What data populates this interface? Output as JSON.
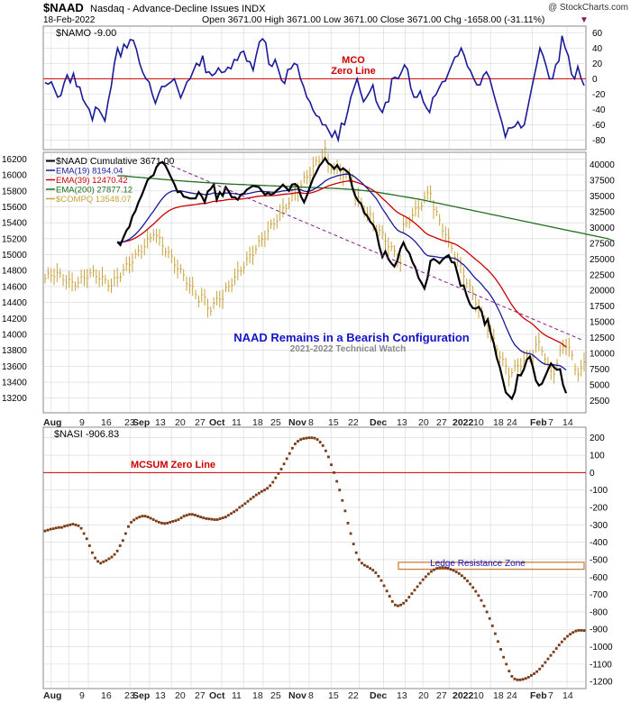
{
  "header": {
    "symbol": "$NAAD",
    "description": "Nasdaq - Advance-Decline Issues  INDX",
    "watermark": "@ StockCharts.com",
    "date": "18-Feb-2022",
    "ohlc": "Open 3671.00  High 3671.00  Low 3671.00  Close 3671.00  Chg -1658.00 (-31.11%)",
    "down_marker": "▼"
  },
  "colors": {
    "black": "#000000",
    "navy": "#1a1a99",
    "red": "#cc0000",
    "green": "#1f6e1f",
    "gold": "#c8a33c",
    "brown": "#7a3a14",
    "annotation_blue": "#1414c8",
    "grid": "#d6d6d6"
  },
  "x_axis": {
    "months": [
      "Aug",
      "Sep",
      "Oct",
      "Nov",
      "Dec",
      "2022",
      "Feb"
    ],
    "days": [
      "9",
      "16",
      "23",
      "7",
      "13",
      "20",
      "27",
      "11",
      "18",
      "25",
      "8",
      "15",
      "22",
      "6",
      "13",
      "20",
      "27",
      "10",
      "18",
      "24",
      "7",
      "14"
    ]
  },
  "chart_data": [
    {
      "id": "mco",
      "type": "line",
      "title": "$NAMO -9.00",
      "series_name": "$NAMO",
      "zero_line_label": "MCO\nZero Line",
      "ylim": [
        -90,
        65
      ],
      "yticks": [
        60,
        40,
        20,
        0,
        -20,
        -40,
        -60,
        -80
      ],
      "values": [
        -5,
        -7,
        -4,
        -14,
        -24,
        -22,
        -6,
        5,
        -5,
        7,
        -10,
        -11,
        -27,
        -34,
        -40,
        -54,
        -37,
        -40,
        -47,
        -55,
        -30,
        -10,
        20,
        40,
        29,
        45,
        40,
        51,
        50,
        38,
        20,
        8,
        0,
        -4,
        -20,
        -32,
        -20,
        -10,
        -10,
        -7,
        -4,
        0,
        -12,
        -25,
        -15,
        -4,
        0,
        10,
        20,
        17,
        30,
        8,
        9,
        4,
        7,
        14,
        8,
        9,
        15,
        13,
        25,
        24,
        34,
        36,
        23,
        22,
        11,
        31,
        48,
        52,
        47,
        19,
        16,
        25,
        12,
        -2,
        -6,
        12,
        13,
        20,
        18,
        0,
        -10,
        -24,
        -30,
        -41,
        -48,
        -50,
        -60,
        -60,
        -68,
        -76,
        -68,
        -80,
        -58,
        -60,
        -43,
        -24,
        -12,
        0,
        -16,
        -30,
        -24,
        -17,
        -8,
        -29,
        -38,
        -44,
        -31,
        -30,
        0,
        2,
        0,
        8,
        18,
        12,
        -12,
        -24,
        -24,
        -16,
        -30,
        -38,
        -44,
        -25,
        -21,
        -12,
        -4,
        -3,
        8,
        18,
        28,
        30,
        40,
        30,
        16,
        10,
        0,
        -8,
        -8,
        4,
        9,
        1,
        -15,
        -30,
        -44,
        -58,
        -76,
        -64,
        -64,
        -62,
        -56,
        -64,
        -60,
        -40,
        -20,
        0,
        19,
        40,
        30,
        16,
        0,
        0,
        18,
        23,
        56,
        40,
        30,
        6,
        0,
        16,
        1,
        -9
      ]
    },
    {
      "id": "naad",
      "type": "line",
      "title": "NAAD Remains in a Bearish Configuration",
      "subtitle": "2021-2022 Technical Watch",
      "legend": [
        "$NAAD Cumulative 3671.00",
        "EMA(19) 8194.04",
        "EMA(39) 12470.42",
        "EMA(200) 27877.12",
        "$COMPQ 13548.07"
      ],
      "ylim_left": [
        13050,
        16250
      ],
      "yticks_left": [
        16200,
        16000,
        15800,
        15600,
        15400,
        15200,
        15000,
        14800,
        14600,
        14400,
        14200,
        14000,
        13800,
        13600,
        13400,
        13200
      ],
      "ylim_right": [
        1000,
        41500
      ],
      "yticks_right": [
        40000,
        37500,
        35000,
        32500,
        30000,
        27500,
        25000,
        22500,
        20000,
        17500,
        15000,
        12500,
        10000,
        7500,
        5000,
        2500
      ],
      "naad_cumulative": [
        null,
        null,
        null,
        null,
        null,
        null,
        null,
        null,
        null,
        null,
        null,
        null,
        null,
        null,
        null,
        null,
        null,
        null,
        null,
        null,
        null,
        null,
        null,
        null,
        27700,
        27200,
        28400,
        29500,
        30100,
        31800,
        32600,
        34000,
        35000,
        36200,
        37500,
        38000,
        38300,
        39600,
        40200,
        40400,
        39800,
        38800,
        37800,
        36800,
        35600,
        35700,
        34900,
        34800,
        34600,
        34600,
        34600,
        35600,
        35000,
        34000,
        35700,
        36100,
        36800,
        34400,
        35600,
        35000,
        36400,
        35700,
        34800,
        34800,
        34400,
        35200,
        35400,
        36000,
        36300,
        36600,
        36500,
        36400,
        35800,
        35200,
        35500,
        35200,
        35400,
        35900,
        36300,
        36800,
        36300,
        35800,
        36800,
        36900,
        36500,
        34900,
        34000,
        35100,
        36500,
        37800,
        38700,
        39700,
        40300,
        41000,
        40200,
        39900,
        39300,
        39900,
        39100,
        39400,
        39000,
        38600,
        36400,
        35000,
        34200,
        33700,
        32300,
        31800,
        30900,
        30400,
        29300,
        27000,
        25300,
        26200,
        25000,
        24300,
        23800,
        24800,
        26600,
        27600,
        26500,
        25900,
        24500,
        23600,
        22000,
        21200,
        20300,
        22000,
        24700,
        25000,
        24700,
        24300,
        24900,
        25300,
        25600,
        24500,
        24400,
        22600,
        20700,
        20800,
        19200,
        17900,
        17200,
        17100,
        17400,
        16600,
        14600,
        15400,
        13200,
        11600,
        9300,
        7800,
        5800,
        3800,
        3300,
        2800,
        3900,
        6600,
        6500,
        7500,
        9000,
        9500,
        7800,
        5700,
        4900,
        5200,
        6300,
        7400,
        8400,
        7800,
        7400,
        7500,
        5000,
        3671
      ],
      "ema200": [
        null,
        null,
        null,
        null,
        null,
        null,
        null,
        null,
        null,
        null,
        null,
        null,
        null,
        null,
        null,
        null,
        null,
        null,
        null,
        null,
        null,
        null,
        null,
        null,
        38200,
        38200,
        38200,
        38150,
        38100,
        38050,
        38000,
        37960,
        37920,
        37880,
        37840,
        37800,
        37760,
        37720,
        37680,
        37640,
        37600,
        37560,
        37520,
        37480,
        37440,
        37400,
        37360,
        37320,
        37290,
        37260,
        37230,
        37200,
        37170,
        37140,
        37110,
        37080,
        37050,
        37020,
        36990,
        36960,
        36930,
        36900,
        36880,
        36860,
        36840,
        36820,
        36800,
        36780,
        36760,
        36740,
        36720,
        36700,
        36680,
        36660,
        36640,
        36620,
        36600,
        36580,
        36560,
        36540,
        36520,
        36500,
        36480,
        36460,
        36440,
        36420,
        36400,
        36380,
        36360,
        36340,
        36320,
        36300,
        36280,
        36260,
        36240,
        36220,
        36200,
        36180,
        36150,
        36120,
        36090,
        36060,
        36030,
        36000,
        35950,
        35900,
        35850,
        35800,
        35750,
        35700,
        35620,
        35540,
        35460,
        35380,
        35300,
        35220,
        35140,
        35060,
        34980,
        34900,
        34820,
        34740,
        34660,
        34580,
        34500,
        34400,
        34300,
        34200,
        34100,
        34000,
        33900,
        33800,
        33700,
        33600,
        33500,
        33400,
        33300,
        33200,
        33100,
        33000,
        32900,
        32800,
        32700,
        32600,
        32500,
        32400,
        32300,
        32200,
        32100,
        32000,
        31900,
        31800,
        31700,
        31600,
        31500,
        31400,
        31300,
        31200,
        31100,
        31000,
        30900,
        30800,
        30700,
        30600,
        30500,
        30400,
        30300,
        30200,
        30100,
        30000,
        29900,
        29800,
        29700,
        29600,
        29500,
        29400,
        29300,
        29200,
        29100,
        29000,
        28900,
        28800,
        28700,
        28600,
        28500,
        28400,
        28300,
        28200,
        28000,
        27877
      ],
      "ema39_endpoint": 12470.42,
      "ema19_endpoint": 8194.04,
      "trendline": [
        [
          40,
          40200
        ],
        [
          178,
          12200
        ]
      ],
      "compq_ohlc_note": "gold price bars, left axis"
    },
    {
      "id": "nasi",
      "type": "scatter",
      "title": "$NASI -906.83",
      "series_name": "$NASI",
      "zero_line_label": "MCSUM Zero Line",
      "annotation": "Ledge Resistance Zone",
      "ylim": [
        -1230,
        240
      ],
      "yticks": [
        200,
        100,
        0,
        -100,
        -200,
        -300,
        -400,
        -500,
        -600,
        -700,
        -800,
        -900,
        -1000,
        -1100,
        -1200
      ],
      "values": [
        -335,
        -330,
        -325,
        -322,
        -318,
        -315,
        -315,
        -308,
        -304,
        -300,
        -296,
        -300,
        -305,
        -320,
        -350,
        -380,
        -420,
        -460,
        -490,
        -510,
        -520,
        -512,
        -505,
        -495,
        -485,
        -470,
        -450,
        -420,
        -390,
        -350,
        -310,
        -285,
        -272,
        -262,
        -255,
        -250,
        -250,
        -255,
        -262,
        -270,
        -278,
        -285,
        -290,
        -292,
        -290,
        -285,
        -280,
        -276,
        -270,
        -260,
        -250,
        -245,
        -240,
        -240,
        -244,
        -250,
        -255,
        -260,
        -264,
        -266,
        -268,
        -270,
        -270,
        -265,
        -260,
        -255,
        -245,
        -235,
        -225,
        -215,
        -200,
        -190,
        -178,
        -165,
        -152,
        -140,
        -128,
        -118,
        -108,
        -100,
        -90,
        -75,
        -55,
        -30,
        -5,
        20,
        50,
        80,
        110,
        140,
        165,
        180,
        190,
        195,
        198,
        200,
        200,
        198,
        190,
        175,
        155,
        125,
        90,
        45,
        0,
        -50,
        -100,
        -160,
        -220,
        -290,
        -350,
        -410,
        -460,
        -500,
        -520,
        -532,
        -540,
        -550,
        -560,
        -575,
        -595,
        -620,
        -650,
        -680,
        -710,
        -740,
        -760,
        -765,
        -760,
        -750,
        -735,
        -715,
        -695,
        -675,
        -655,
        -635,
        -615,
        -598,
        -582,
        -568,
        -558,
        -550,
        -546,
        -545,
        -546,
        -550,
        -556,
        -562,
        -570,
        -580,
        -592,
        -606,
        -622,
        -640,
        -660,
        -682,
        -706,
        -734,
        -766,
        -800,
        -838,
        -880,
        -925,
        -970,
        -1015,
        -1060,
        -1100,
        -1140,
        -1170,
        -1185,
        -1190,
        -1190,
        -1187,
        -1182,
        -1175,
        -1165,
        -1155,
        -1143,
        -1128,
        -1110,
        -1090,
        -1070,
        -1050,
        -1030,
        -1010,
        -990,
        -972,
        -955,
        -940,
        -928,
        -918,
        -910,
        -906,
        -906,
        -907
      ]
    }
  ]
}
